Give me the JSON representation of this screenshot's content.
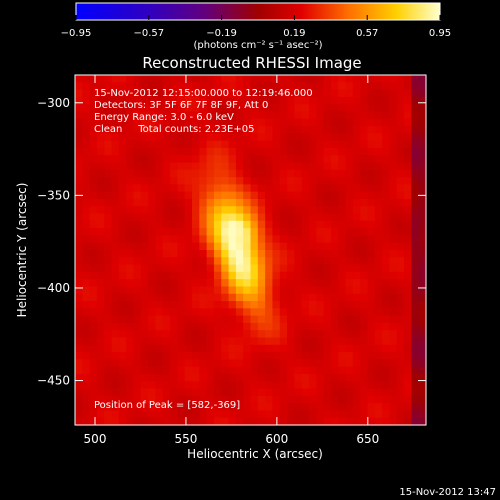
{
  "chart_data": {
    "type": "heatmap",
    "title": "Reconstructed RHESSI Image",
    "xlabel": "Heliocentric X (arcsec)",
    "ylabel": "Heliocentric Y (arcsec)",
    "xlim": [
      489,
      682
    ],
    "ylim": [
      -474,
      -285
    ],
    "x_ticks": [
      500,
      550,
      600,
      650
    ],
    "y_ticks": [
      -300,
      -350,
      -400,
      -450
    ],
    "colorbar": {
      "range": [
        -0.95,
        0.95
      ],
      "ticks": [
        "−0.95",
        "−0.57",
        "−0.19",
        "0.19",
        "0.57",
        "0.95"
      ],
      "colormap": "std-gamma-II (blue-purple-red-yellow-white)",
      "units_label": "(photons cm⁻² s⁻¹ asec⁻²)"
    },
    "annotations": [
      "15-Nov-2012 12:15:00.000 to 12:19:46.000",
      "Detectors: 3F 5F 6F 7F 8F 9F, Att 0",
      "Energy Range: 3.0 - 6.0 keV",
      "Clean     Total counts: 2.23E+05"
    ],
    "peak_label": "Position of Peak = [582,-369]",
    "peak": {
      "x": 582,
      "y": -369
    },
    "source": {
      "x": 578,
      "y": -378,
      "sx": 9,
      "sy": 24,
      "tilt_deg": -18
    },
    "background_level": 0.2,
    "footer": "15-Nov-2012 13:47"
  }
}
